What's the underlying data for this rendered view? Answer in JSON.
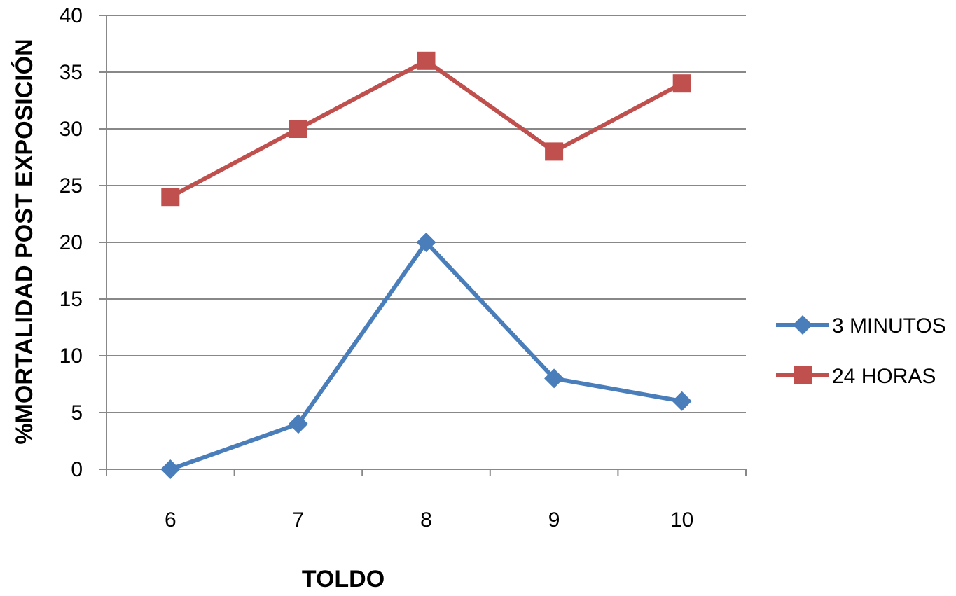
{
  "chart_data": {
    "type": "line",
    "title": "",
    "xlabel": "TOLDO",
    "ylabel": "%MORTALIDAD POST EXPOSICIÓN",
    "categories": [
      "6",
      "7",
      "8",
      "9",
      "10"
    ],
    "ylim": [
      0,
      40
    ],
    "yticks": [
      0,
      5,
      10,
      15,
      20,
      25,
      30,
      35,
      40
    ],
    "grid": true,
    "legend_position": "right",
    "series": [
      {
        "name": "3 MINUTOS",
        "values": [
          0,
          4,
          20,
          8,
          6
        ],
        "color": "#4a7ebb",
        "marker": "diamond"
      },
      {
        "name": "24 HORAS",
        "values": [
          24,
          30,
          36,
          28,
          34
        ],
        "color": "#c0504d",
        "marker": "square"
      }
    ]
  }
}
